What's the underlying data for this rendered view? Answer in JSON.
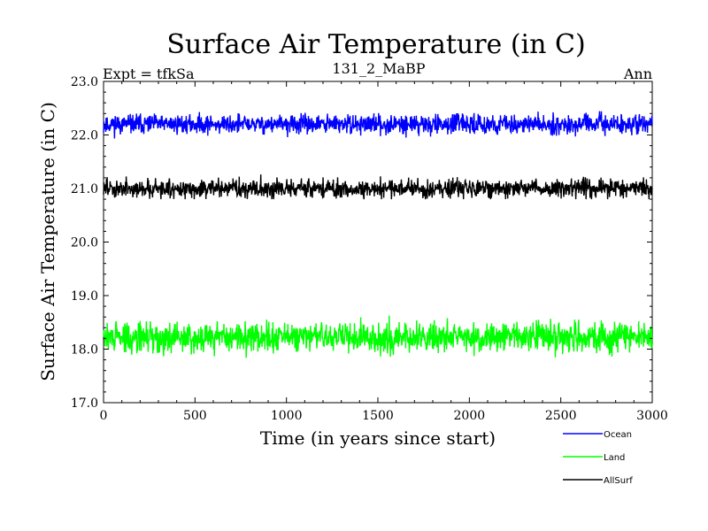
{
  "chart_data": {
    "type": "line",
    "title": "Surface Air Temperature (in C)",
    "subtitle_left": "Expt = tfkSa",
    "subtitle_center": "131_2_MaBP",
    "subtitle_right": "Ann",
    "xlabel": "Time (in years since start)",
    "ylabel": "Surface Air Temperature (in C)",
    "xlim": [
      0,
      3000
    ],
    "ylim": [
      17.0,
      23.0
    ],
    "xticks": [
      0,
      500,
      1000,
      1500,
      2000,
      2500,
      3000
    ],
    "xtick_labels": [
      "0",
      "500",
      "1000",
      "1500",
      "2000",
      "2500",
      "3000"
    ],
    "yticks": [
      17.0,
      18.0,
      19.0,
      20.0,
      21.0,
      22.0,
      23.0
    ],
    "ytick_labels": [
      "17.0",
      "18.0",
      "19.0",
      "20.0",
      "21.0",
      "22.0",
      "23.0"
    ],
    "grid": false,
    "legend_position": "bottom-right",
    "series": [
      {
        "name": "Ocean",
        "color": "#0000ff",
        "mean": 22.2,
        "range": [
          21.9,
          22.45
        ],
        "seed": 11
      },
      {
        "name": "Land",
        "color": "#00ff00",
        "mean": 18.22,
        "range": [
          17.75,
          18.7
        ],
        "seed": 29
      },
      {
        "name": "AllSurf",
        "color": "#000000",
        "mean": 21.0,
        "range": [
          20.8,
          21.3
        ],
        "seed": 47
      }
    ]
  }
}
